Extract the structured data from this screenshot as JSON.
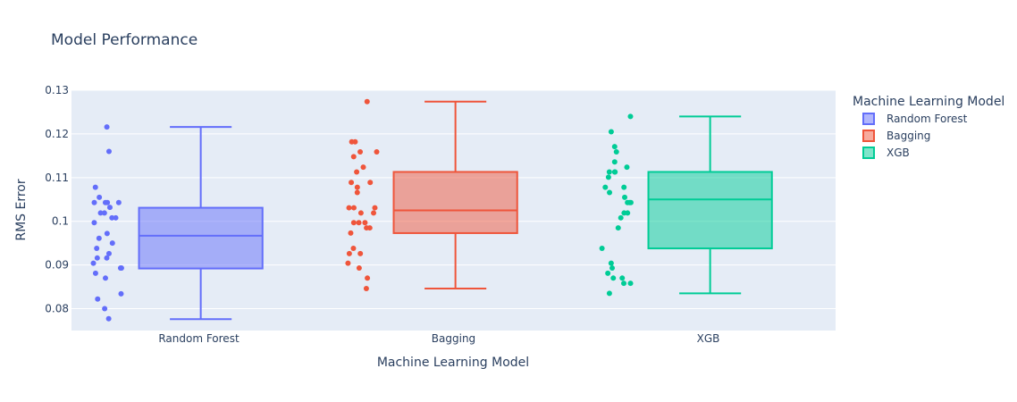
{
  "chart_data": {
    "type": "box",
    "title": "Model Performance",
    "xlabel": "Machine Learning Model",
    "ylabel": "RMS Error",
    "ylim": [
      0.075,
      0.13
    ],
    "yticks": [
      0.08,
      0.09,
      0.1,
      0.11,
      0.12,
      0.13
    ],
    "ytick_labels": [
      "0.08",
      "0.09",
      "0.1",
      "0.11",
      "0.12",
      "0.13"
    ],
    "categories": [
      "Random Forest",
      "Bagging",
      "XGB"
    ],
    "grid": true,
    "legend": {
      "title": "Machine Learning Model",
      "position": "right"
    },
    "series": [
      {
        "name": "Random Forest",
        "color": "#636efa",
        "box": {
          "min": 0.0776,
          "q1": 0.0892,
          "median": 0.0967,
          "q3": 0.1031,
          "max": 0.1216
        },
        "points": [
          0.1216,
          0.116,
          0.1078,
          0.1055,
          0.1043,
          0.1043,
          0.1043,
          0.1043,
          0.1032,
          0.1019,
          0.1019,
          0.1008,
          0.1008,
          0.0997,
          0.0972,
          0.0961,
          0.095,
          0.0938,
          0.0926,
          0.0916,
          0.0916,
          0.0904,
          0.0893,
          0.0893,
          0.0881,
          0.087,
          0.0834,
          0.0822,
          0.08,
          0.0777
        ]
      },
      {
        "name": "Bagging",
        "color": "#ef553b",
        "box": {
          "min": 0.0846,
          "q1": 0.0973,
          "median": 0.1025,
          "q3": 0.1113,
          "max": 0.1274
        },
        "points": [
          0.1274,
          0.1182,
          0.1182,
          0.1159,
          0.1159,
          0.1148,
          0.1124,
          0.1113,
          0.1089,
          0.1089,
          0.1078,
          0.1066,
          0.1031,
          0.1031,
          0.1031,
          0.1019,
          0.1019,
          0.0997,
          0.0997,
          0.0997,
          0.0985,
          0.0985,
          0.0973,
          0.0938,
          0.0926,
          0.0926,
          0.0904,
          0.0893,
          0.087,
          0.0846
        ]
      },
      {
        "name": "XGB",
        "color": "#00cc96",
        "box": {
          "min": 0.0835,
          "q1": 0.0938,
          "median": 0.105,
          "q3": 0.1113,
          "max": 0.124
        },
        "points": [
          0.124,
          0.1205,
          0.1171,
          0.1159,
          0.1136,
          0.1124,
          0.1113,
          0.1113,
          0.1113,
          0.1101,
          0.1078,
          0.1078,
          0.1066,
          0.1055,
          0.1043,
          0.1043,
          0.1043,
          0.1019,
          0.1019,
          0.1008,
          0.0985,
          0.0938,
          0.0904,
          0.0893,
          0.0881,
          0.087,
          0.087,
          0.0858,
          0.0835,
          0.0858
        ]
      }
    ]
  }
}
